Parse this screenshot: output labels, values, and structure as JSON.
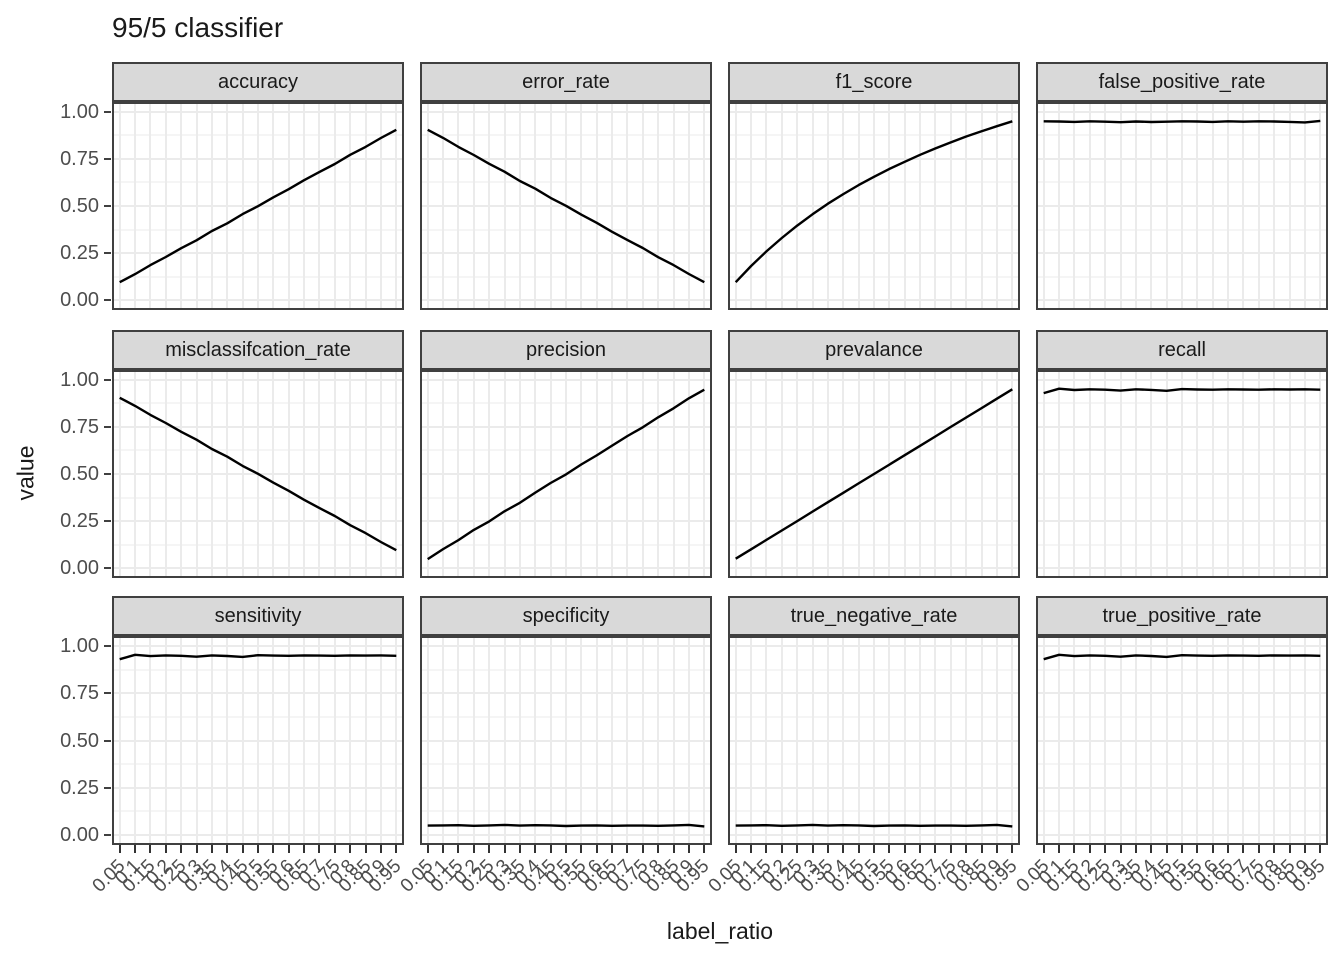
{
  "chart_data": {
    "type": "line",
    "title": "95/5 classifier",
    "xlabel": "label_ratio",
    "ylabel": "value",
    "legend": "none",
    "grid": "on",
    "facet_layout": {
      "rows": 3,
      "cols": 4
    },
    "x": [
      0.05,
      0.1,
      0.15,
      0.2,
      0.25,
      0.3,
      0.35,
      0.4,
      0.45,
      0.5,
      0.55,
      0.6,
      0.65,
      0.7,
      0.75,
      0.8,
      0.85,
      0.9,
      0.95
    ],
    "x_tick_labels": [
      "0.05",
      "0.1",
      "0.15",
      "0.2",
      "0.25",
      "0.3",
      "0.35",
      "0.4",
      "0.45",
      "0.5",
      "0.55",
      "0.6",
      "0.65",
      "0.7",
      "0.75",
      "0.8",
      "0.85",
      "0.9",
      "0.95"
    ],
    "y_tick_labels": [
      "1.00",
      "0.75",
      "0.50",
      "0.25",
      "0.00"
    ],
    "y_tick_values": [
      1.0,
      0.75,
      0.5,
      0.25,
      0.0
    ],
    "ylim": [
      0,
      1
    ],
    "line_color": "#000000",
    "strip_background": "#d9d9d9",
    "panel_border_color": "#404040",
    "grid_color": "#ebebeb",
    "axis_text_color": "#4d4d4d",
    "facets": [
      {
        "label": "accuracy",
        "values": [
          0.095,
          0.138,
          0.186,
          0.229,
          0.276,
          0.318,
          0.367,
          0.408,
          0.457,
          0.499,
          0.546,
          0.589,
          0.637,
          0.681,
          0.723,
          0.772,
          0.814,
          0.861,
          0.905
        ]
      },
      {
        "label": "error_rate",
        "values": [
          0.905,
          0.862,
          0.814,
          0.771,
          0.724,
          0.682,
          0.633,
          0.592,
          0.543,
          0.501,
          0.454,
          0.411,
          0.363,
          0.319,
          0.277,
          0.228,
          0.186,
          0.139,
          0.095
        ]
      },
      {
        "label": "f1_score",
        "values": [
          0.095,
          0.181,
          0.259,
          0.33,
          0.396,
          0.456,
          0.512,
          0.563,
          0.611,
          0.655,
          0.697,
          0.735,
          0.772,
          0.806,
          0.838,
          0.869,
          0.897,
          0.924,
          0.95
        ]
      },
      {
        "label": "false_positive_rate",
        "values": [
          0.95,
          0.949,
          0.947,
          0.95,
          0.948,
          0.945,
          0.949,
          0.946,
          0.948,
          0.95,
          0.949,
          0.947,
          0.95,
          0.948,
          0.95,
          0.949,
          0.947,
          0.944,
          0.952
        ]
      },
      {
        "label": "misclassifcation_rate",
        "values": [
          0.905,
          0.862,
          0.814,
          0.771,
          0.724,
          0.682,
          0.633,
          0.592,
          0.543,
          0.501,
          0.454,
          0.411,
          0.363,
          0.319,
          0.277,
          0.228,
          0.186,
          0.139,
          0.095
        ]
      },
      {
        "label": "precision",
        "values": [
          0.048,
          0.101,
          0.149,
          0.203,
          0.248,
          0.302,
          0.347,
          0.401,
          0.452,
          0.498,
          0.551,
          0.599,
          0.651,
          0.702,
          0.748,
          0.801,
          0.849,
          0.902,
          0.948
        ]
      },
      {
        "label": "prevalance",
        "values": [
          0.05,
          0.1,
          0.15,
          0.2,
          0.25,
          0.3,
          0.35,
          0.4,
          0.45,
          0.5,
          0.55,
          0.6,
          0.65,
          0.7,
          0.75,
          0.8,
          0.85,
          0.9,
          0.95
        ]
      },
      {
        "label": "recall",
        "values": [
          0.93,
          0.953,
          0.946,
          0.95,
          0.948,
          0.943,
          0.95,
          0.947,
          0.942,
          0.951,
          0.949,
          0.948,
          0.95,
          0.949,
          0.948,
          0.95,
          0.949,
          0.95,
          0.948
        ]
      },
      {
        "label": "sensitivity",
        "values": [
          0.93,
          0.953,
          0.946,
          0.95,
          0.948,
          0.943,
          0.95,
          0.947,
          0.942,
          0.951,
          0.949,
          0.948,
          0.95,
          0.949,
          0.948,
          0.95,
          0.949,
          0.95,
          0.948
        ]
      },
      {
        "label": "specificity",
        "values": [
          0.05,
          0.051,
          0.052,
          0.049,
          0.051,
          0.054,
          0.05,
          0.052,
          0.051,
          0.048,
          0.05,
          0.051,
          0.049,
          0.05,
          0.05,
          0.049,
          0.051,
          0.054,
          0.046
        ]
      },
      {
        "label": "true_negative_rate",
        "values": [
          0.05,
          0.051,
          0.052,
          0.049,
          0.051,
          0.054,
          0.05,
          0.052,
          0.051,
          0.048,
          0.05,
          0.051,
          0.049,
          0.05,
          0.05,
          0.049,
          0.051,
          0.054,
          0.046
        ]
      },
      {
        "label": "true_positive_rate",
        "values": [
          0.93,
          0.953,
          0.946,
          0.95,
          0.948,
          0.943,
          0.95,
          0.947,
          0.942,
          0.951,
          0.949,
          0.948,
          0.95,
          0.949,
          0.948,
          0.95,
          0.949,
          0.95,
          0.948
        ]
      }
    ]
  }
}
